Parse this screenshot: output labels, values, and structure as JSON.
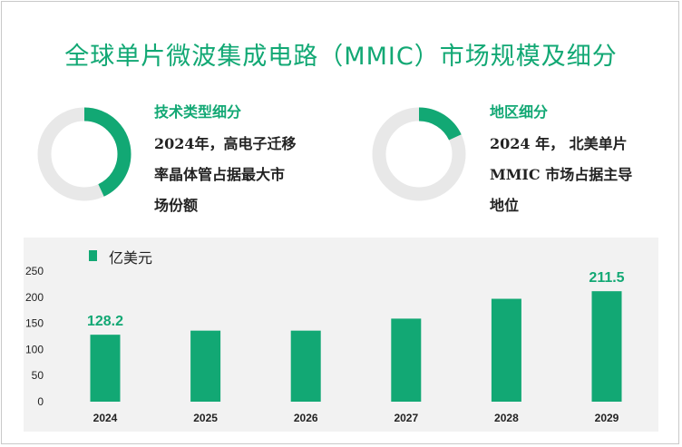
{
  "title": "全球单片微波集成电路（MMIC）市场规模及细分",
  "colors": {
    "accent": "#12a874",
    "ring_bg": "#e8e8e8",
    "panel_bg": "#f2f2f2"
  },
  "cards": [
    {
      "heading": "技术类型细分",
      "lines": [
        "2024年，高电子迁移",
        "率晶体管占据最大市",
        "场份额"
      ],
      "donut_fraction": 0.43
    },
    {
      "heading": "地区细分",
      "lines": [
        "2024 年， 北美单片",
        "MMIC 市场占据主导",
        "地位"
      ],
      "donut_fraction": 0.18
    }
  ],
  "chart_data": {
    "type": "bar",
    "legend": "亿美元",
    "categories": [
      "2024",
      "2025",
      "2026",
      "2027",
      "2028",
      "2029"
    ],
    "values": [
      128.2,
      136,
      136,
      159,
      197,
      211.5
    ],
    "data_labels": [
      "128.2",
      "",
      "",
      "",
      "",
      "211.5"
    ],
    "y_ticks": [
      "0",
      "50",
      "100",
      "150",
      "200",
      "250"
    ],
    "ylim": [
      0,
      250
    ]
  }
}
